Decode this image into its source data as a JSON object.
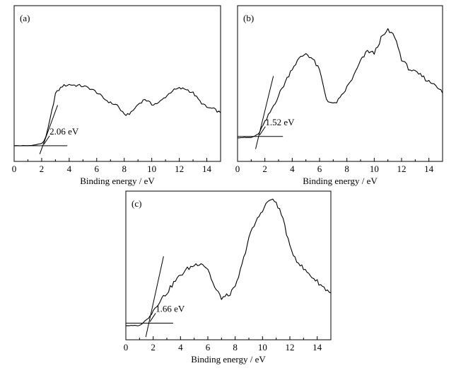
{
  "chart_data": [
    {
      "type": "line",
      "panel_label": "(a)",
      "xlabel": "Binding energy / eV",
      "xlim": [
        0,
        15
      ],
      "x_ticks": [
        0,
        2,
        4,
        6,
        8,
        10,
        12,
        14
      ],
      "series": [
        {
          "x": [
            0,
            1,
            1.5,
            2.0,
            2.3,
            2.6,
            3.0,
            3.5,
            4.0,
            4.5,
            5.0,
            5.5,
            6.0,
            6.5,
            7.0,
            7.5,
            8.0,
            8.5,
            9.0,
            9.5,
            10.0,
            10.5,
            11.0,
            11.5,
            12.0,
            12.5,
            13.0,
            13.5,
            14.0,
            14.5,
            15.0
          ],
          "y": [
            0.02,
            0.02,
            0.03,
            0.05,
            0.12,
            0.35,
            0.7,
            0.8,
            0.82,
            0.81,
            0.8,
            0.77,
            0.72,
            0.64,
            0.58,
            0.55,
            0.42,
            0.45,
            0.56,
            0.63,
            0.56,
            0.58,
            0.66,
            0.74,
            0.77,
            0.76,
            0.71,
            0.6,
            0.52,
            0.5,
            0.45
          ]
        }
      ],
      "onset_label": "2.06 eV",
      "onset_value": 2.06
    },
    {
      "type": "line",
      "panel_label": "(b)",
      "xlabel": "Binding energy / eV",
      "xlim": [
        0,
        15
      ],
      "x_ticks": [
        0,
        2,
        4,
        6,
        8,
        10,
        12,
        14
      ],
      "series": [
        {
          "x": [
            0,
            1.0,
            1.52,
            2.0,
            2.5,
            3.0,
            3.5,
            4.0,
            4.5,
            5.0,
            5.5,
            6.0,
            6.5,
            7.0,
            7.5,
            8.0,
            8.5,
            9.0,
            9.5,
            10.0,
            10.5,
            11.0,
            11.5,
            12.0,
            12.5,
            13.0,
            13.5,
            14.0,
            14.5,
            15.0
          ],
          "y": [
            0.01,
            0.01,
            0.04,
            0.14,
            0.26,
            0.38,
            0.5,
            0.62,
            0.7,
            0.75,
            0.7,
            0.6,
            0.35,
            0.3,
            0.35,
            0.45,
            0.55,
            0.68,
            0.77,
            0.75,
            0.88,
            0.95,
            0.9,
            0.7,
            0.62,
            0.58,
            0.55,
            0.5,
            0.48,
            0.4
          ]
        }
      ],
      "onset_label": "1.52 eV",
      "onset_value": 1.52
    },
    {
      "type": "line",
      "panel_label": "(c)",
      "xlabel": "Binding energy / eV",
      "xlim": [
        0,
        15
      ],
      "x_ticks": [
        0,
        2,
        4,
        6,
        8,
        10,
        12,
        14
      ],
      "series": [
        {
          "x": [
            0,
            1.0,
            1.66,
            2.0,
            2.5,
            3.0,
            3.5,
            4.0,
            4.5,
            5.0,
            5.5,
            6.0,
            6.5,
            7.0,
            7.5,
            8.0,
            8.5,
            9.0,
            9.5,
            10.0,
            10.5,
            11.0,
            11.5,
            12.0,
            12.5,
            13.0,
            13.5,
            14.0,
            14.5,
            15.0
          ],
          "y": [
            0.0,
            0.0,
            0.06,
            0.12,
            0.2,
            0.26,
            0.34,
            0.4,
            0.45,
            0.48,
            0.5,
            0.45,
            0.3,
            0.22,
            0.24,
            0.3,
            0.48,
            0.7,
            0.82,
            0.92,
            1.0,
            0.98,
            0.85,
            0.62,
            0.52,
            0.45,
            0.4,
            0.35,
            0.3,
            0.26
          ]
        }
      ],
      "onset_label": "1.66 eV",
      "onset_value": 1.66
    }
  ]
}
